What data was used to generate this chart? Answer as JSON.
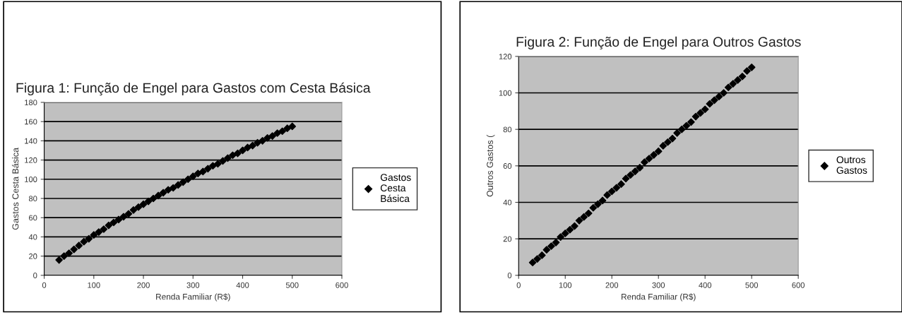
{
  "chart_data": [
    {
      "type": "scatter",
      "title": "Figura 1: Função de Engel para Gastos com Cesta Básica",
      "xlabel": "Renda Familiar (R$)",
      "ylabel": "Gastos Cesta Básica",
      "x": [
        30,
        40,
        50,
        60,
        70,
        80,
        90,
        100,
        110,
        120,
        130,
        140,
        150,
        160,
        170,
        180,
        190,
        200,
        210,
        220,
        230,
        240,
        250,
        260,
        270,
        280,
        290,
        300,
        310,
        320,
        330,
        340,
        350,
        360,
        370,
        380,
        390,
        400,
        410,
        420,
        430,
        440,
        450,
        460,
        470,
        480,
        490,
        500
      ],
      "series": [
        {
          "name": "Gastos Cesta Básica",
          "color": "#000000",
          "values": [
            16,
            20,
            23,
            27,
            31,
            35,
            38,
            42,
            45,
            48,
            52,
            55,
            58,
            61,
            64,
            68,
            71,
            74,
            77,
            80,
            83,
            86,
            89,
            91,
            94,
            97,
            100,
            103,
            106,
            108,
            111,
            114,
            116,
            119,
            122,
            125,
            127,
            130,
            133,
            135,
            138,
            140,
            143,
            145,
            148,
            150,
            153,
            155
          ]
        }
      ],
      "xlim": [
        0,
        600
      ],
      "xticks": [
        0,
        100,
        200,
        300,
        400,
        500,
        600
      ],
      "ylim": [
        0,
        180
      ],
      "yticks": [
        0,
        20,
        40,
        60,
        80,
        100,
        120,
        140,
        160,
        180
      ],
      "grid": "y",
      "legend": "right",
      "marker": "diamond"
    },
    {
      "type": "scatter",
      "title": "Figura 2: Função de Engel para Outros Gastos",
      "xlabel": "Renda Familiar (R$)",
      "ylabel": "Outros Gastos (",
      "x": [
        30,
        40,
        50,
        60,
        70,
        80,
        90,
        100,
        110,
        120,
        130,
        140,
        150,
        160,
        170,
        180,
        190,
        200,
        210,
        220,
        230,
        240,
        250,
        260,
        270,
        280,
        290,
        300,
        310,
        320,
        330,
        340,
        350,
        360,
        370,
        380,
        390,
        400,
        410,
        420,
        430,
        440,
        450,
        460,
        470,
        480,
        490,
        500
      ],
      "series": [
        {
          "name": "Outros Gastos",
          "color": "#000000",
          "values": [
            7,
            9,
            11,
            14,
            16,
            18,
            21,
            23,
            25,
            27,
            30,
            32,
            34,
            37,
            39,
            41,
            44,
            46,
            48,
            50,
            53,
            55,
            57,
            59,
            62,
            64,
            66,
            68,
            71,
            73,
            75,
            78,
            80,
            82,
            84,
            87,
            89,
            91,
            94,
            96,
            98,
            100,
            103,
            105,
            107,
            109,
            112,
            114
          ]
        }
      ],
      "xlim": [
        0,
        600
      ],
      "xticks": [
        0,
        100,
        200,
        300,
        400,
        500,
        600
      ],
      "ylim": [
        0,
        120
      ],
      "yticks": [
        0,
        20,
        40,
        60,
        80,
        100,
        120
      ],
      "grid": "y",
      "legend": "right",
      "marker": "diamond"
    }
  ]
}
